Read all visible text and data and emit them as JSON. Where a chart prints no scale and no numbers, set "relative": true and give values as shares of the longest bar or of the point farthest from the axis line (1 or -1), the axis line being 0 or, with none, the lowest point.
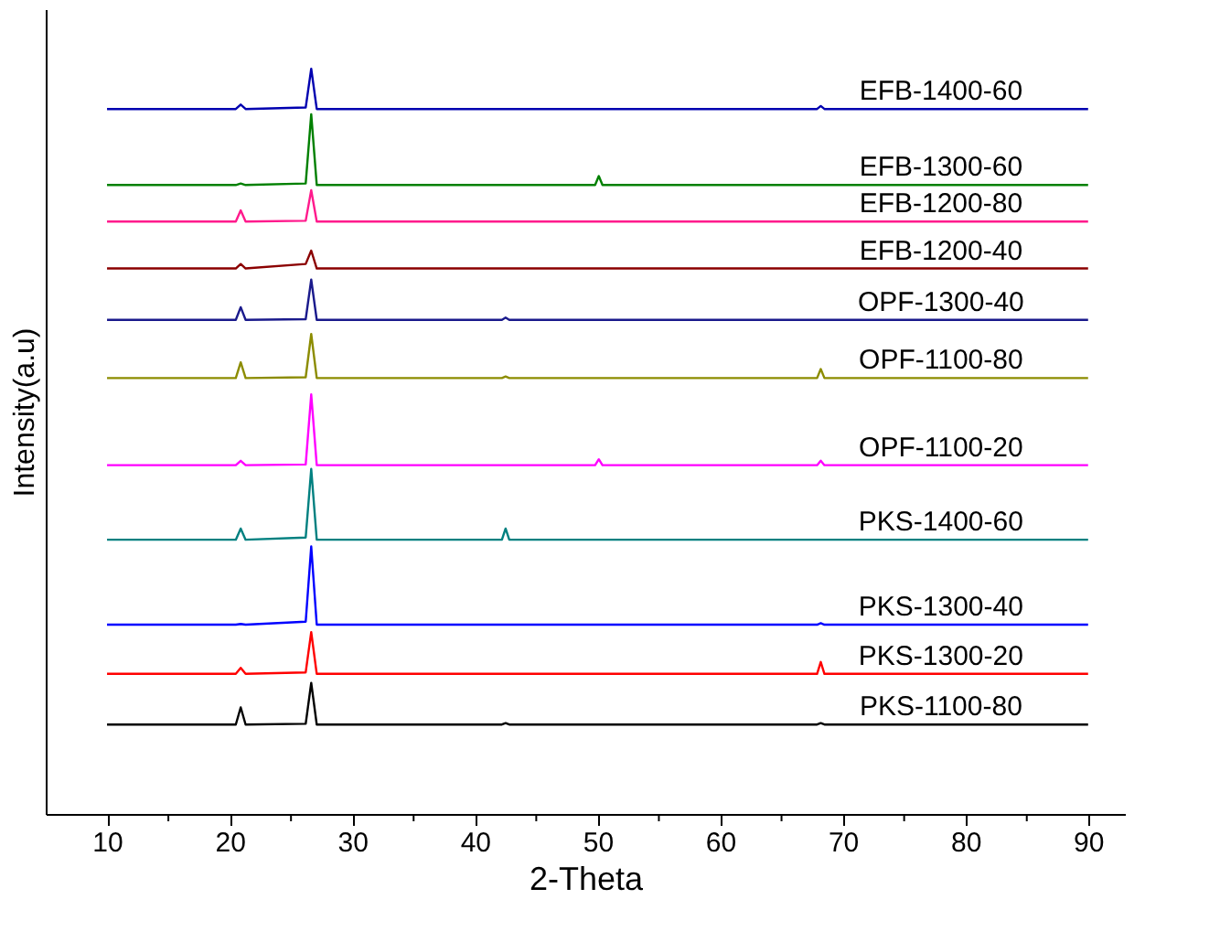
{
  "chart_data": {
    "type": "line",
    "xlabel": "2-Theta",
    "ylabel": "Intensity(a.u)",
    "relative": true,
    "legend": false,
    "grid": false,
    "xlim": [
      5,
      93
    ],
    "xticks": [
      10,
      {
        "value": 15,
        "label": null
      },
      20,
      {
        "value": 25,
        "label": null
      },
      30,
      {
        "value": 35,
        "label": null
      },
      40,
      {
        "value": 45,
        "label": null
      },
      50,
      {
        "value": 55,
        "label": null
      },
      60,
      {
        "value": 65,
        "label": null
      },
      70,
      {
        "value": 75,
        "label": null
      },
      80,
      {
        "value": 85,
        "label": null
      },
      90
    ],
    "x": [
      10,
      20.5,
      20.9,
      21.3,
      26.2,
      26.65,
      27.1,
      42.2,
      42.5,
      42.8,
      49.8,
      50.1,
      50.4,
      67.9,
      68.2,
      68.5,
      90
    ],
    "series": [
      {
        "name": "EFB-1400-60",
        "color": "#0000b0",
        "values": [
          0.946,
          0.946,
          0.952,
          0.946,
          0.948,
          1.0,
          0.946,
          0.946,
          0.946,
          0.946,
          0.946,
          0.946,
          0.946,
          0.946,
          0.95,
          0.946,
          0.946
        ]
      },
      {
        "name": "EFB-1300-60",
        "color": "#008000",
        "values": [
          0.844,
          0.844,
          0.846,
          0.844,
          0.846,
          0.939,
          0.844,
          0.844,
          0.844,
          0.844,
          0.844,
          0.856,
          0.844,
          0.844,
          0.844,
          0.844,
          0.844
        ]
      },
      {
        "name": "EFB-1200-80",
        "color": "#ff1a8c",
        "values": [
          0.795,
          0.795,
          0.81,
          0.795,
          0.796,
          0.837,
          0.795,
          0.795,
          0.795,
          0.795,
          0.795,
          0.795,
          0.795,
          0.795,
          0.795,
          0.795,
          0.795
        ]
      },
      {
        "name": "EFB-1200-40",
        "color": "#8b0000",
        "values": [
          0.732,
          0.732,
          0.738,
          0.732,
          0.738,
          0.756,
          0.732,
          0.732,
          0.732,
          0.732,
          0.732,
          0.732,
          0.732,
          0.732,
          0.732,
          0.732,
          0.732
        ]
      },
      {
        "name": "OPF-1300-40",
        "color": "#1a1a8c",
        "values": [
          0.663,
          0.663,
          0.68,
          0.663,
          0.664,
          0.717,
          0.663,
          0.663,
          0.666,
          0.663,
          0.663,
          0.663,
          0.663,
          0.663,
          0.663,
          0.663,
          0.663
        ]
      },
      {
        "name": "OPF-1100-80",
        "color": "#8c8c00",
        "values": [
          0.585,
          0.585,
          0.606,
          0.585,
          0.586,
          0.644,
          0.585,
          0.585,
          0.587,
          0.585,
          0.585,
          0.585,
          0.585,
          0.585,
          0.597,
          0.585,
          0.585
        ]
      },
      {
        "name": "OPF-1100-20",
        "color": "#ff00ff",
        "values": [
          0.468,
          0.468,
          0.474,
          0.468,
          0.469,
          0.563,
          0.468,
          0.468,
          0.468,
          0.468,
          0.468,
          0.476,
          0.468,
          0.468,
          0.474,
          0.468,
          0.468
        ]
      },
      {
        "name": "PKS-1400-60",
        "color": "#008080",
        "values": [
          0.368,
          0.368,
          0.383,
          0.368,
          0.371,
          0.463,
          0.368,
          0.368,
          0.383,
          0.368,
          0.368,
          0.368,
          0.368,
          0.368,
          0.368,
          0.368,
          0.368
        ]
      },
      {
        "name": "PKS-1300-40",
        "color": "#0000ff",
        "values": [
          0.254,
          0.254,
          0.255,
          0.254,
          0.258,
          0.359,
          0.254,
          0.254,
          0.254,
          0.254,
          0.254,
          0.254,
          0.254,
          0.254,
          0.256,
          0.254,
          0.254
        ]
      },
      {
        "name": "PKS-1300-20",
        "color": "#ff0000",
        "values": [
          0.188,
          0.188,
          0.196,
          0.188,
          0.19,
          0.244,
          0.188,
          0.188,
          0.188,
          0.188,
          0.188,
          0.188,
          0.188,
          0.188,
          0.204,
          0.188,
          0.188
        ]
      },
      {
        "name": "PKS-1100-80",
        "color": "#000000",
        "values": [
          0.12,
          0.12,
          0.143,
          0.12,
          0.121,
          0.176,
          0.12,
          0.12,
          0.122,
          0.12,
          0.12,
          0.12,
          0.12,
          0.12,
          0.122,
          0.12,
          0.12
        ]
      }
    ]
  }
}
